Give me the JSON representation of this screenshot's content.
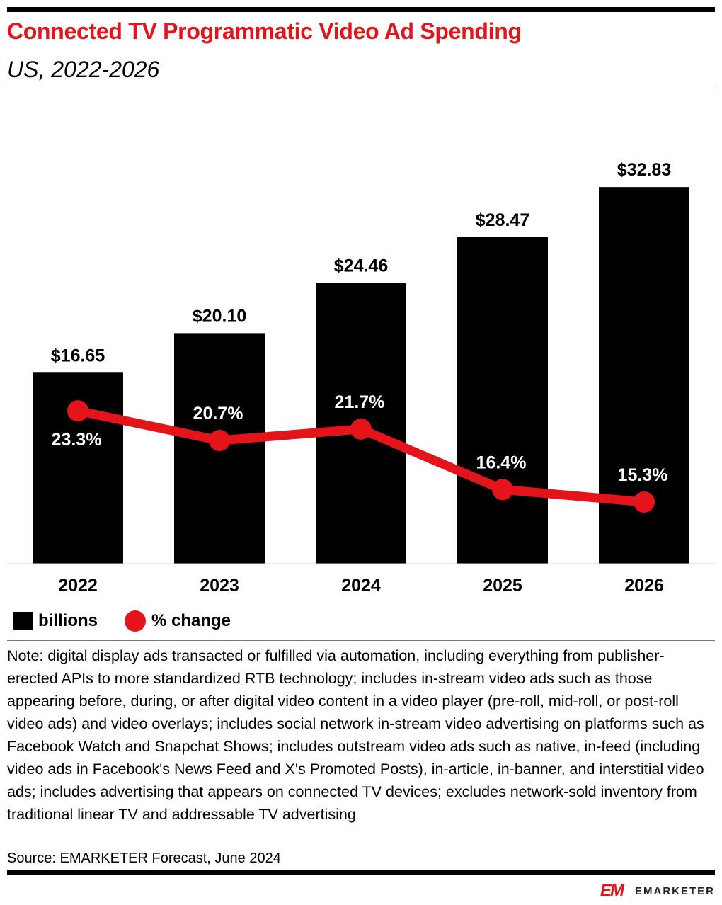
{
  "header": {
    "title": "Connected TV Programmatic Video Ad Spending",
    "subtitle": "US, 2022-2026"
  },
  "chart_data": {
    "type": "bar",
    "categories": [
      "2022",
      "2023",
      "2024",
      "2025",
      "2026"
    ],
    "series": [
      {
        "name": "billions",
        "type": "bar",
        "values": [
          16.65,
          20.1,
          24.46,
          28.47,
          32.83
        ],
        "labels": [
          "$16.65",
          "$20.10",
          "$24.46",
          "$28.47",
          "$32.83"
        ],
        "color": "#000000"
      },
      {
        "name": "% change",
        "type": "line",
        "values": [
          23.3,
          20.7,
          21.7,
          16.4,
          15.3
        ],
        "labels": [
          "23.3%",
          "20.7%",
          "21.7%",
          "16.4%",
          "15.3%"
        ],
        "color": "#e4141b"
      }
    ],
    "grid": false,
    "legend": "bottom-left"
  },
  "legend": {
    "bars": "billions",
    "line": "% change"
  },
  "note": "Note: digital display ads transacted or fulfilled via automation, including everything from publisher-erected APIs to more standardized RTB technology; includes in-stream video ads such as those appearing before, during, or after digital video content in a video player (pre-roll, mid-roll, or post-roll video ads) and video overlays; includes social network in-stream video advertising on platforms such as Facebook Watch and Snapchat Shows; includes outstream video ads such as native, in-feed (including video ads in Facebook's News Feed and X's Promoted Posts), in-article, in-banner, and interstitial video ads; includes advertising that appears on connected TV devices; excludes network-sold inventory from traditional linear TV and addressable TV advertising",
  "source": "Source: EMARKETER Forecast, June 2024",
  "logo": {
    "mark": "EM",
    "text": "EMARKETER"
  }
}
